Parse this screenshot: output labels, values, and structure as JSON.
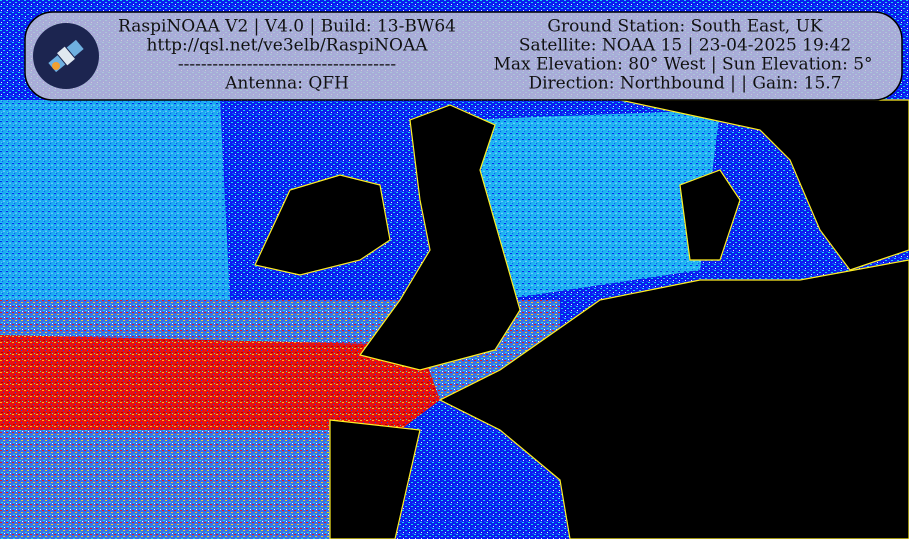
{
  "header": {
    "left": [
      "RaspiNOAA V2 | V4.0 | Build: 13-BW64",
      "http://qsl.net/ve3elb/RaspiNOAA",
      "--------------------------------------",
      "Antenna: QFH"
    ],
    "right": [
      "Ground Station: South East, UK",
      "Satellite: NOAA 15 | 23-04-2025 19:42",
      "Max Elevation: 80° West | Sun Elevation: 5°",
      "Direction: Northbound | | Gain: 15.7"
    ]
  }
}
